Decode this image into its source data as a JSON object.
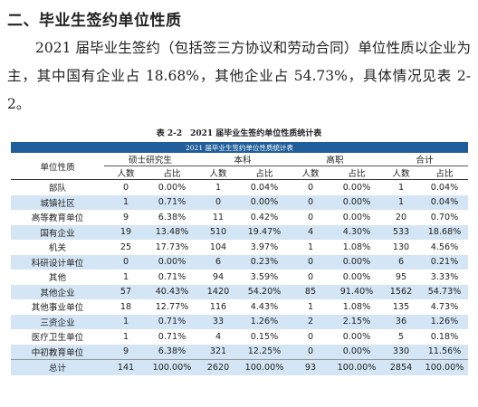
{
  "section_heading": "二、毕业生签约单位性质",
  "paragraph": "2021 届毕业生签约（包括签三方协议和劳动合同）单位性质以企业为主，其中国有企业占 18.68%，其他企业占 54.73%，具体情况见表 2-2。",
  "table_caption": "表 2-2　2021 届毕业生签约单位性质统计表",
  "table": {
    "title": "2021 届毕业生签约单位性质统计表",
    "row_header": "单位性质",
    "groups": [
      "硕士研究生",
      "本科",
      "高职",
      "合计"
    ],
    "sub_headers": [
      "人数",
      "占比",
      "人数",
      "占比",
      "人数",
      "占比",
      "人数",
      "占比"
    ],
    "rows": [
      [
        "部队",
        "0",
        "0.00%",
        "1",
        "0.04%",
        "0",
        "0.00%",
        "1",
        "0.04%"
      ],
      [
        "城镇社区",
        "1",
        "0.71%",
        "0",
        "0.00%",
        "0",
        "0.00%",
        "1",
        "0.04%"
      ],
      [
        "高等教育单位",
        "9",
        "6.38%",
        "11",
        "0.42%",
        "0",
        "0.00%",
        "20",
        "0.70%"
      ],
      [
        "国有企业",
        "19",
        "13.48%",
        "510",
        "19.47%",
        "4",
        "4.30%",
        "533",
        "18.68%"
      ],
      [
        "机关",
        "25",
        "17.73%",
        "104",
        "3.97%",
        "1",
        "1.08%",
        "130",
        "4.56%"
      ],
      [
        "科研设计单位",
        "0",
        "0.00%",
        "6",
        "0.23%",
        "0",
        "0.00%",
        "6",
        "0.21%"
      ],
      [
        "其他",
        "1",
        "0.71%",
        "94",
        "3.59%",
        "0",
        "0.00%",
        "95",
        "3.33%"
      ],
      [
        "其他企业",
        "57",
        "40.43%",
        "1420",
        "54.20%",
        "85",
        "91.40%",
        "1562",
        "54.73%"
      ],
      [
        "其他事业单位",
        "18",
        "12.77%",
        "116",
        "4.43%",
        "1",
        "1.08%",
        "135",
        "4.73%"
      ],
      [
        "三资企业",
        "1",
        "0.71%",
        "33",
        "1.26%",
        "2",
        "2.15%",
        "36",
        "1.26%"
      ],
      [
        "医疗卫生单位",
        "1",
        "0.71%",
        "4",
        "0.15%",
        "0",
        "0.00%",
        "5",
        "0.18%"
      ],
      [
        "中初教育单位",
        "9",
        "6.38%",
        "321",
        "12.25%",
        "0",
        "0.00%",
        "330",
        "11.56%"
      ]
    ],
    "total": [
      "总计",
      "141",
      "100.00%",
      "2620",
      "100.00%",
      "93",
      "100.00%",
      "2854",
      "100.00%"
    ]
  }
}
